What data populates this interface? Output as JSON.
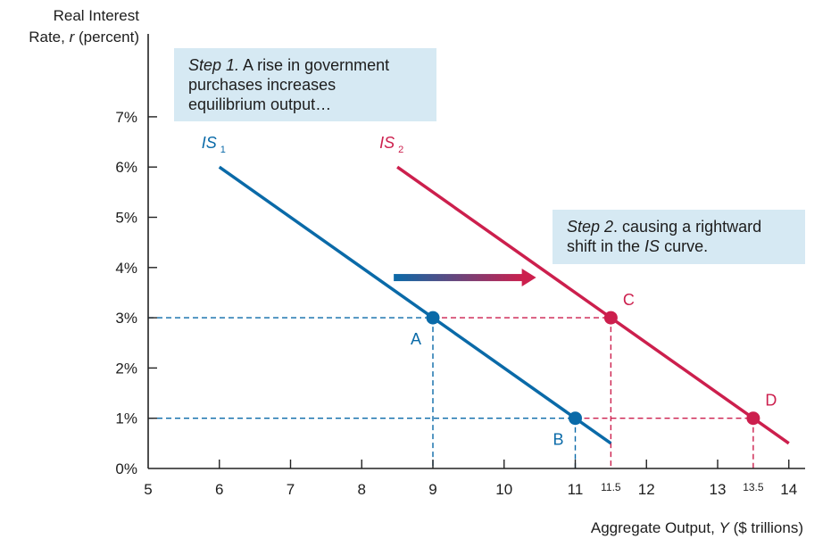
{
  "chart_data": {
    "type": "line",
    "title": "",
    "ylabel_line1": "Real Interest",
    "ylabel_line2_prefix": "Rate, ",
    "ylabel_var": "r",
    "ylabel_line2_suffix": " (percent)",
    "xlabel_prefix": "Aggregate Output, ",
    "xlabel_var": "Y",
    "xlabel_suffix": " ($ trillions)",
    "xlim": [
      5,
      14.25
    ],
    "ylim": [
      0,
      7
    ],
    "x_ticks": [
      "5",
      "6",
      "7",
      "8",
      "9",
      "10",
      "11",
      "12",
      "13",
      "14"
    ],
    "x_ticks_small": [
      "11.5",
      "13.5"
    ],
    "y_ticks": [
      "0%",
      "1%",
      "2%",
      "3%",
      "4%",
      "5%",
      "6%",
      "7%"
    ],
    "series": [
      {
        "name": "IS",
        "subscript": "1",
        "color": "#0a6aa8",
        "x": [
          6,
          11.5
        ],
        "y": [
          6,
          0.5
        ]
      },
      {
        "name": "IS",
        "subscript": "2",
        "color": "#cc1f4d",
        "x": [
          8.5,
          14
        ],
        "y": [
          6,
          0.5
        ]
      }
    ],
    "points": [
      {
        "label": "A",
        "x": 9,
        "y": 3,
        "color": "#0a6aa8",
        "label_pos": "below-left"
      },
      {
        "label": "B",
        "x": 11,
        "y": 1,
        "color": "#0a6aa8",
        "label_pos": "below-left"
      },
      {
        "label": "C",
        "x": 11.5,
        "y": 3,
        "color": "#cc1f4d",
        "label_pos": "above-right"
      },
      {
        "label": "D",
        "x": 13.5,
        "y": 1,
        "color": "#cc1f4d",
        "label_pos": "above-right"
      }
    ],
    "annotations": [
      {
        "step": "Step 1.",
        "text_1": " A rise in government",
        "text_2": "purchases increases",
        "text_3": "equilibrium output…"
      },
      {
        "step": "Step 2",
        "text_1": ". causing a rightward",
        "text_2_prefix": "shift in the ",
        "text_2_italic": "IS",
        "text_2_suffix": " curve."
      }
    ],
    "arrow": {
      "from_x": 8.45,
      "to_x": 10.45,
      "y": 3.8,
      "color_start": "#0a6aa8",
      "color_end": "#cc1f4d"
    }
  }
}
